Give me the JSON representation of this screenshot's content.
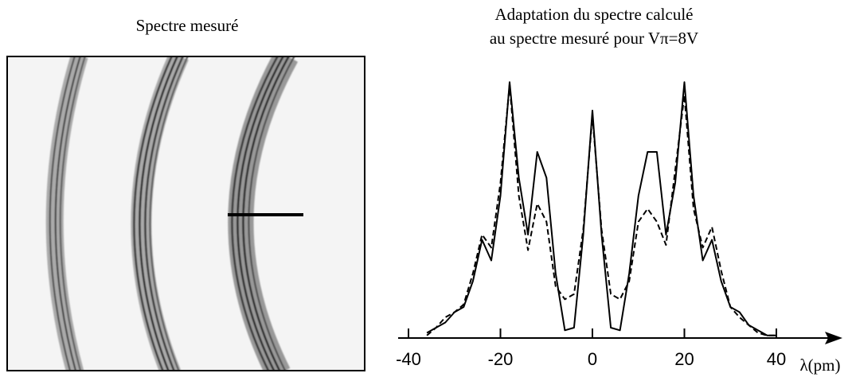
{
  "image_panel": {
    "title": "Spectre mesuré"
  },
  "chart_data": {
    "type": "line",
    "title": [
      "Adaptation du spectre calculé",
      "au spectre mesuré pour Vπ=8V"
    ],
    "x_label": "λ(pm)",
    "x": [
      -36,
      -34,
      -32,
      -30,
      -28,
      -26,
      -24,
      -22,
      -20,
      -18,
      -16,
      -14,
      -12,
      -10,
      -8,
      -6,
      -4,
      -2,
      0,
      2,
      4,
      6,
      8,
      10,
      12,
      14,
      16,
      18,
      20,
      22,
      24,
      26,
      28,
      30,
      32,
      34,
      36,
      38,
      40
    ],
    "series": [
      {
        "color": "#000000",
        "style": "solid",
        "values": [
          0.02,
          0.04,
          0.06,
          0.1,
          0.12,
          0.22,
          0.38,
          0.3,
          0.55,
          0.99,
          0.62,
          0.4,
          0.72,
          0.62,
          0.25,
          0.03,
          0.04,
          0.4,
          0.88,
          0.4,
          0.04,
          0.03,
          0.25,
          0.55,
          0.72,
          0.72,
          0.4,
          0.6,
          0.99,
          0.55,
          0.3,
          0.38,
          0.22,
          0.12,
          0.1,
          0.05,
          0.03,
          0.01,
          0.01
        ]
      },
      {
        "color": "#000000",
        "style": "dashed",
        "values": [
          0.01,
          0.04,
          0.08,
          0.1,
          0.13,
          0.25,
          0.4,
          0.35,
          0.6,
          0.98,
          0.55,
          0.34,
          0.52,
          0.45,
          0.2,
          0.15,
          0.17,
          0.42,
          0.86,
          0.42,
          0.17,
          0.15,
          0.22,
          0.45,
          0.5,
          0.45,
          0.36,
          0.65,
          0.94,
          0.5,
          0.35,
          0.43,
          0.26,
          0.12,
          0.08,
          0.05,
          0.02,
          0.01,
          0.01
        ]
      }
    ],
    "xlim": [
      -40,
      40
    ],
    "ylim": [
      0,
      1
    ],
    "xticks": [
      -40,
      -20,
      0,
      20,
      40
    ]
  }
}
